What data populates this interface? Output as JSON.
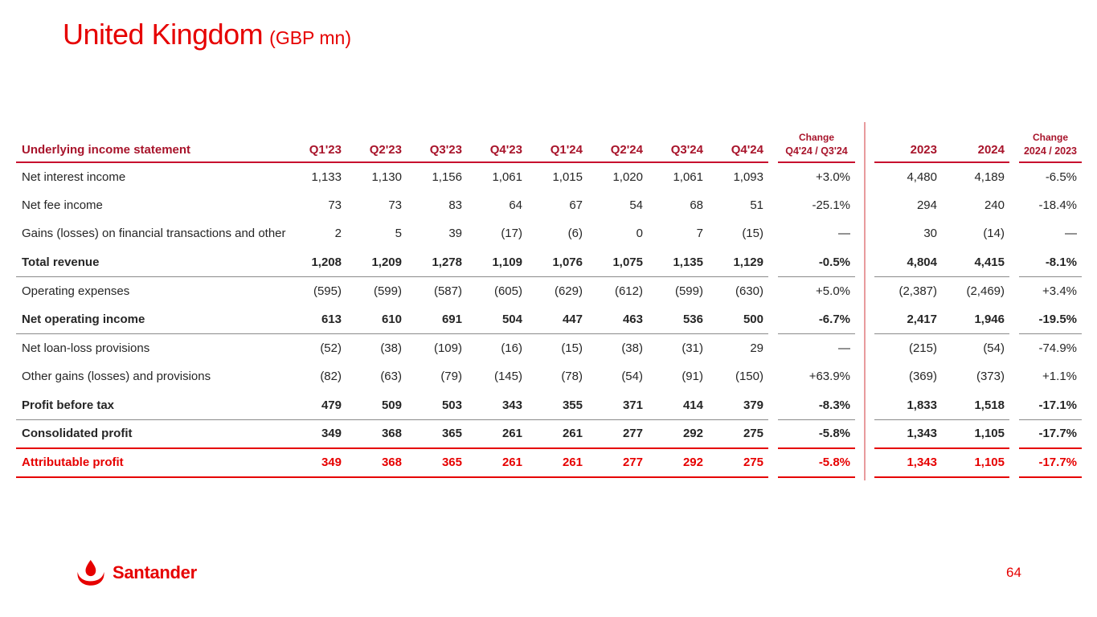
{
  "title": {
    "main": "United Kingdom",
    "suffix": "(GBP mn)"
  },
  "table": {
    "label_header": "Underlying income statement",
    "quarter_headers": [
      "Q1'23",
      "Q2'23",
      "Q3'23",
      "Q4'23",
      "Q1'24",
      "Q2'24",
      "Q3'24",
      "Q4'24"
    ],
    "change_q_header": {
      "top": "Change",
      "bottom": "Q4'24 / Q3'24"
    },
    "year_headers": [
      "2023",
      "2024"
    ],
    "change_y_header": {
      "top": "Change",
      "bottom": "2024 / 2023"
    },
    "rows": [
      {
        "label": "Net interest income",
        "bold": false,
        "red": false,
        "border": "none",
        "quarters": [
          "1,133",
          "1,130",
          "1,156",
          "1,061",
          "1,015",
          "1,020",
          "1,061",
          "1,093"
        ],
        "change_q": "+3.0%",
        "years": [
          "4,480",
          "4,189"
        ],
        "change_y": "-6.5%"
      },
      {
        "label": "Net fee income",
        "bold": false,
        "red": false,
        "border": "none",
        "quarters": [
          "73",
          "73",
          "83",
          "64",
          "67",
          "54",
          "68",
          "51"
        ],
        "change_q": "-25.1%",
        "years": [
          "294",
          "240"
        ],
        "change_y": "-18.4%"
      },
      {
        "label": "Gains (losses) on financial transactions and other",
        "bold": false,
        "red": false,
        "border": "none",
        "quarters": [
          "2",
          "5",
          "39",
          "(17)",
          "(6)",
          "0",
          "7",
          "(15)"
        ],
        "change_q": "—",
        "years": [
          "30",
          "(14)"
        ],
        "change_y": "—"
      },
      {
        "label": "Total revenue",
        "bold": true,
        "red": false,
        "border": "gray",
        "quarters": [
          "1,208",
          "1,209",
          "1,278",
          "1,109",
          "1,076",
          "1,075",
          "1,135",
          "1,129"
        ],
        "change_q": "-0.5%",
        "years": [
          "4,804",
          "4,415"
        ],
        "change_y": "-8.1%"
      },
      {
        "label": "Operating expenses",
        "bold": false,
        "red": false,
        "border": "none",
        "quarters": [
          "(595)",
          "(599)",
          "(587)",
          "(605)",
          "(629)",
          "(612)",
          "(599)",
          "(630)"
        ],
        "change_q": "+5.0%",
        "years": [
          "(2,387)",
          "(2,469)"
        ],
        "change_y": "+3.4%"
      },
      {
        "label": "Net operating income",
        "bold": true,
        "red": false,
        "border": "gray",
        "quarters": [
          "613",
          "610",
          "691",
          "504",
          "447",
          "463",
          "536",
          "500"
        ],
        "change_q": "-6.7%",
        "years": [
          "2,417",
          "1,946"
        ],
        "change_y": "-19.5%"
      },
      {
        "label": "Net loan-loss provisions",
        "bold": false,
        "red": false,
        "border": "none",
        "quarters": [
          "(52)",
          "(38)",
          "(109)",
          "(16)",
          "(15)",
          "(38)",
          "(31)",
          "29"
        ],
        "change_q": "—",
        "years": [
          "(215)",
          "(54)"
        ],
        "change_y": "-74.9%"
      },
      {
        "label": "Other gains (losses) and provisions",
        "bold": false,
        "red": false,
        "border": "none",
        "quarters": [
          "(82)",
          "(63)",
          "(79)",
          "(145)",
          "(78)",
          "(54)",
          "(91)",
          "(150)"
        ],
        "change_q": "+63.9%",
        "years": [
          "(369)",
          "(373)"
        ],
        "change_y": "+1.1%"
      },
      {
        "label": "Profit before tax",
        "bold": true,
        "red": false,
        "border": "gray",
        "quarters": [
          "479",
          "509",
          "503",
          "343",
          "355",
          "371",
          "414",
          "379"
        ],
        "change_q": "-8.3%",
        "years": [
          "1,833",
          "1,518"
        ],
        "change_y": "-17.1%"
      },
      {
        "label": "Consolidated profit",
        "bold": true,
        "red": false,
        "border": "red",
        "quarters": [
          "349",
          "368",
          "365",
          "261",
          "261",
          "277",
          "292",
          "275"
        ],
        "change_q": "-5.8%",
        "years": [
          "1,343",
          "1,105"
        ],
        "change_y": "-17.7%"
      },
      {
        "label": "Attributable profit",
        "bold": true,
        "red": true,
        "border": "red",
        "quarters": [
          "349",
          "368",
          "365",
          "261",
          "261",
          "277",
          "292",
          "275"
        ],
        "change_q": "-5.8%",
        "years": [
          "1,343",
          "1,105"
        ],
        "change_y": "-17.7%"
      }
    ]
  },
  "footer": {
    "logo_text": "Santander",
    "page_number": "64"
  },
  "colors": {
    "brand_red": "#E60000",
    "header_red": "#A8142B",
    "line_red": "#C8102E",
    "divider_pink": "#E89B9D",
    "gray_line": "#8A8A8A",
    "text": "#262626"
  }
}
